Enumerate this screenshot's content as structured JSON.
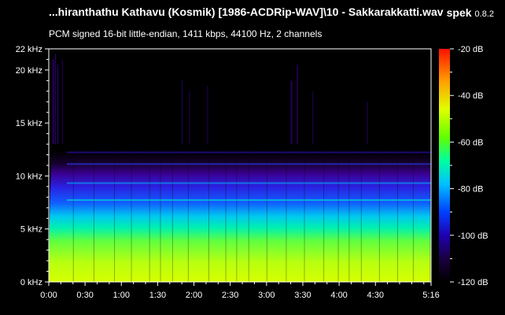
{
  "header": {
    "file_title": "...hiranthathu Kathavu (Kosmik) [1986-ACDRip-WAV]\\10 - Sakkarakkatti.wav",
    "app_name": "spek",
    "app_version": "0.8.2",
    "stream_info": "PCM signed 16-bit little-endian, 1411 kbps, 44100 Hz, 2 channels"
  },
  "chart_data": {
    "type": "heatmap",
    "x_ticks": [
      "0:00",
      "0:30",
      "1:00",
      "1:30",
      "2:00",
      "2:30",
      "3:00",
      "3:30",
      "4:00",
      "4:30",
      "5:16"
    ],
    "x_tick_seconds": [
      0,
      30,
      60,
      90,
      120,
      150,
      180,
      210,
      240,
      270,
      316
    ],
    "x_range_seconds": [
      0,
      316
    ],
    "y_ticks": [
      "0 kHz",
      "5 kHz",
      "10 kHz",
      "15 kHz",
      "20 kHz",
      "22 kHz"
    ],
    "y_tick_khz": [
      0,
      5,
      10,
      15,
      20,
      22
    ],
    "y_range_khz": [
      0,
      22
    ],
    "colorbar_ticks": [
      "-20 dB",
      "-40 dB",
      "-60 dB",
      "-80 dB",
      "-100 dB",
      "-120 dB"
    ],
    "colorbar_db": [
      -20,
      -40,
      -60,
      -80,
      -100,
      -120
    ],
    "colorbar_range_db": [
      -120,
      -20
    ],
    "colors": {
      "min": "#000000",
      "low": "#2a0070",
      "mid_low": "#1a40ff",
      "mid": "#00e0e0",
      "mid_high": "#a0ff20",
      "high": "#ffe000",
      "max": "#ff2000"
    }
  }
}
